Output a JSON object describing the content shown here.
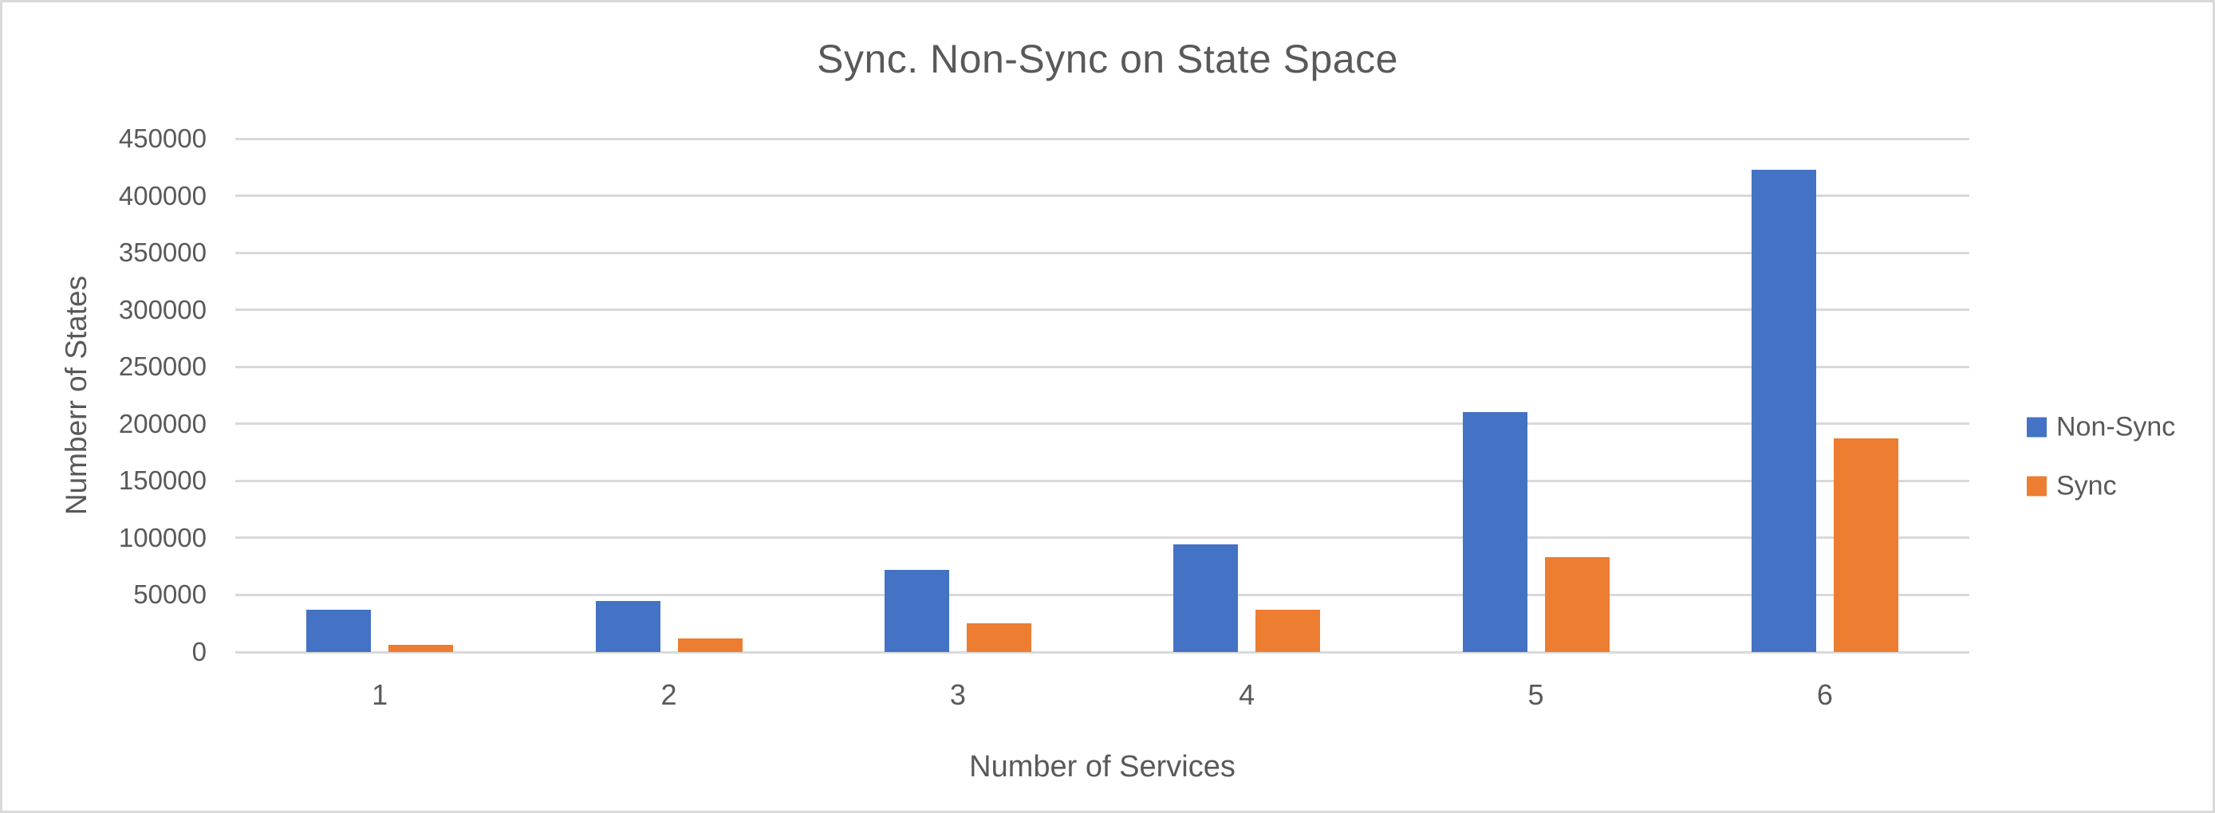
{
  "chart_data": {
    "type": "bar",
    "title": "Sync. Non-Sync on State Space",
    "xlabel": "Number of Services",
    "ylabel": "Numberr of States",
    "categories": [
      "1",
      "2",
      "3",
      "4",
      "5",
      "6"
    ],
    "series": [
      {
        "name": "Non-Sync",
        "color": "#4472C4",
        "values": [
          37000,
          45000,
          72000,
          94000,
          210000,
          423000
        ]
      },
      {
        "name": "Sync",
        "color": "#ED7D31",
        "values": [
          6500,
          12000,
          25000,
          37000,
          83000,
          187000
        ]
      }
    ],
    "ylim": [
      0,
      450000
    ],
    "yticks": [
      0,
      50000,
      100000,
      150000,
      200000,
      250000,
      300000,
      350000,
      400000,
      450000
    ],
    "grid": true,
    "legend_position": "right",
    "colors": {
      "text": "#595959",
      "gridline": "#D9D9D9",
      "frame_border": "#D9D9D9",
      "background": "#FFFFFF"
    }
  }
}
